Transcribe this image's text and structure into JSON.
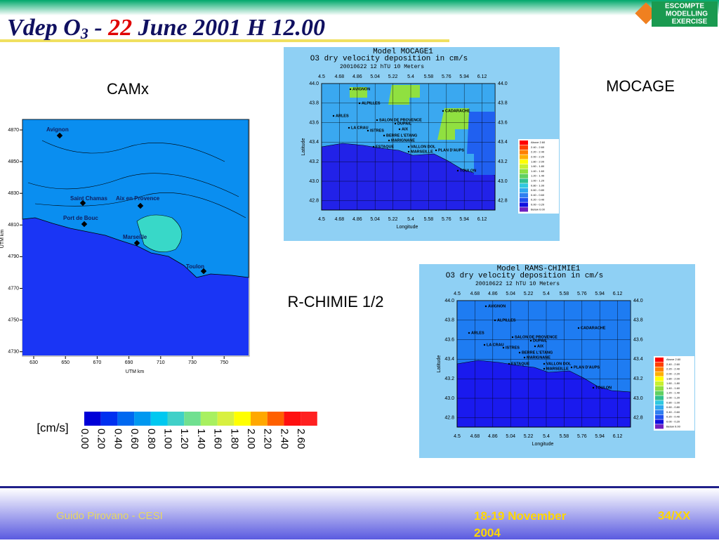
{
  "header": {
    "title_parts": [
      "Vdep O",
      "3",
      " - ",
      "22",
      " June 2001  H 12.00"
    ],
    "logo": [
      "ESCOMPTE",
      "MODELLING",
      "EXERCISE"
    ]
  },
  "labels": {
    "camx": "CAMx",
    "mocage": "MOCAGE",
    "rchimie": "R-CHIMIE 1/2"
  },
  "camx_map": {
    "yticks": [
      "4870",
      "4850",
      "4830",
      "4810",
      "4790",
      "4770",
      "4750",
      "4730"
    ],
    "xticks": [
      "630",
      "650",
      "670",
      "690",
      "710",
      "730",
      "750"
    ],
    "xlabel": "UTM km",
    "ylabel": "UTM km",
    "places": [
      "Avignon",
      "Saint Chamas",
      "Aix en Provence",
      "Port de Bouc",
      "Marseille",
      "Toulon"
    ]
  },
  "maps": [
    {
      "title": "Model MOCAGE1",
      "subtitle": "O3 dry velocity deposition in cm/s",
      "date": "20010622  12 hTU  10 Meters"
    },
    {
      "title": "Model RAMS-CHIMIE1",
      "subtitle": "O3 dry velocity deposition in cm/s",
      "date": "20010622  12 hTU  10 Meters"
    }
  ],
  "map_axes": {
    "lon_ticks": [
      "4.5",
      "4.68",
      "4.86",
      "5.04",
      "5.22",
      "5.4",
      "5.58",
      "5.76",
      "5.94",
      "6.12"
    ],
    "lat_ticks": [
      "44.0",
      "43.8",
      "43.6",
      "43.4",
      "43.2",
      "43.0",
      "42.8"
    ],
    "xlabel": "Longitude",
    "ylabel": "Latitude",
    "places": [
      "AVIGNON",
      "ALPILLES",
      "ARLES",
      "CADARACHE",
      "SALON DE PROVENCE",
      "DUPAIL",
      "LA CRAU",
      "ISTRES",
      "AIX",
      "BERRE L'ETANG",
      "MARIGNANE",
      "ESTAQUE",
      "VALLON DOL",
      "MARSEILLE",
      "PLAN D'AUPS",
      "TOULON"
    ],
    "legend": [
      "Above  2.60",
      "2.40 - 2.60",
      "2.20 - 2.40",
      "2.00 - 2.20",
      "1.80 - 2.00",
      "1.60 - 1.80",
      "1.40 - 1.60",
      "1.20 - 1.40",
      "1.00 - 1.20",
      "0.80 - 1.00",
      "0.60 - 0.80",
      "0.40 - 0.60",
      "0.20 - 0.40",
      "0.00 - 0.20",
      "Below  0.00"
    ]
  },
  "colorbar": {
    "unit": "[cm/s]",
    "ticks": [
      "0.00",
      "0.20",
      "0.40",
      "0.60",
      "0.80",
      "1.00",
      "1.20",
      "1.40",
      "1.60",
      "1.80",
      "2.00",
      "2.20",
      "2.40",
      "2.60"
    ]
  },
  "footer": {
    "author": "Guido Pirovano - CESI",
    "date": "18-19 November 2004",
    "page": "34/XX"
  }
}
